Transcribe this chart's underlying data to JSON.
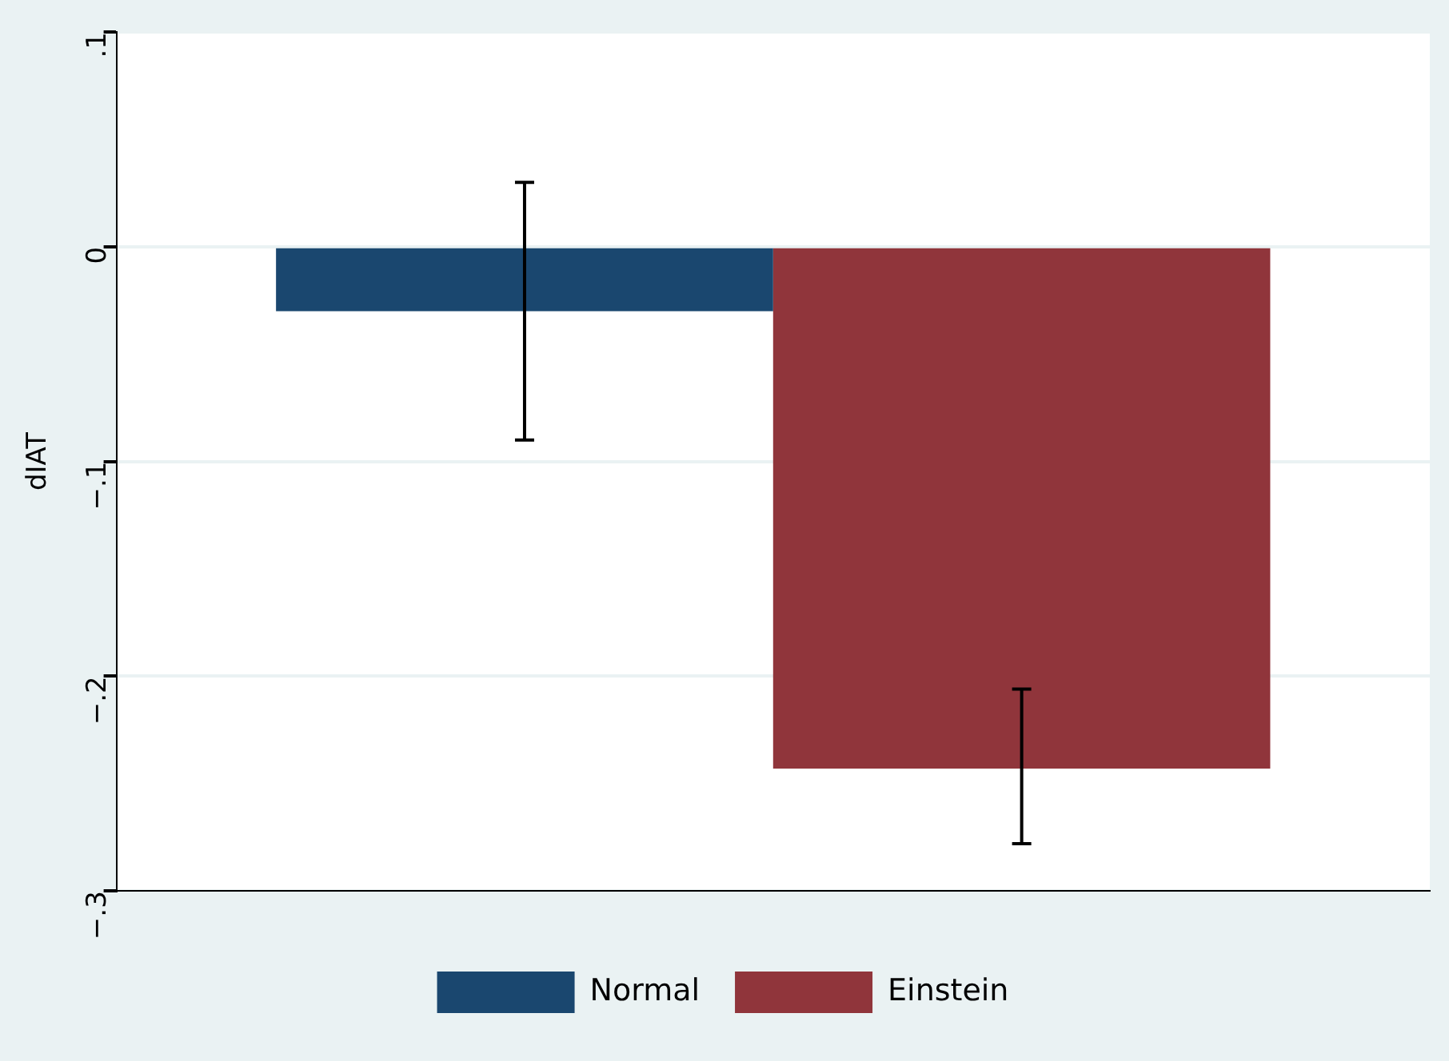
{
  "chart_data": {
    "type": "bar",
    "ylabel": "dIAT",
    "categories": [
      null
    ],
    "series": [
      {
        "name": "Normal",
        "color": "#1a476f",
        "values": [
          -0.03
        ],
        "errors": [
          [
            -0.09,
            0.03
          ]
        ]
      },
      {
        "name": "Einstein",
        "color": "#90353b",
        "values": [
          -0.243
        ],
        "errors": [
          [
            -0.278,
            -0.206
          ]
        ]
      }
    ],
    "ylim": [
      -0.3,
      0.1
    ],
    "yticks": [
      {
        "value": -0.3,
        "label": "−.3"
      },
      {
        "value": -0.2,
        "label": "−.2"
      },
      {
        "value": -0.1,
        "label": "−.1"
      },
      0,
      {
        "value": 0.1,
        "label": ".1"
      }
    ],
    "grid": "y",
    "legend": "bottom"
  }
}
